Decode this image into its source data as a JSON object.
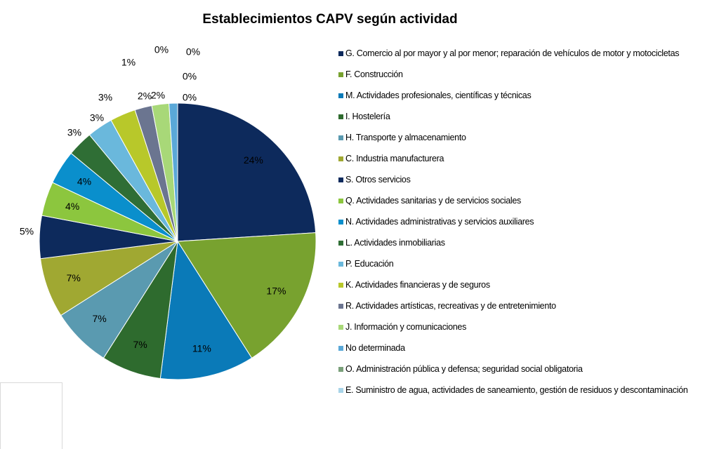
{
  "chart_data": {
    "type": "pie",
    "title": "Establecimientos CAPV según actividad",
    "categories": [
      "G. Comercio al por mayor y al por menor; reparación de vehículos de motor y motocicletas",
      "F. Construcción",
      "M. Actividades profesionales, científicas y técnicas",
      "I. Hostelería",
      "H. Transporte y almacenamiento",
      "C. Industria manufacturera",
      "S. Otros servicios",
      "Q. Actividades sanitarias y de servicios sociales",
      "N. Actividades administrativas y servicios auxiliares",
      "L. Actividades inmobiliarias",
      "P. Educación",
      "K. Actividades financieras y de seguros",
      "R. Actividades artísticas, recreativas y de entretenimiento",
      "J. Información y comunicaciones",
      "No determinada",
      "O. Administración pública y defensa; seguridad social obligatoria",
      "E. Suministro de agua, actividades de saneamiento, gestión de residuos y descontaminación",
      null,
      null
    ],
    "values": [
      24,
      17,
      11,
      7,
      7,
      7,
      5,
      4,
      4,
      3,
      3,
      3,
      2,
      2,
      1,
      0,
      0,
      0,
      0
    ],
    "value_labels": [
      "24%",
      "17%",
      "11%",
      "7%",
      "7%",
      "7%",
      "5%",
      "4%",
      "4%",
      "3%",
      "3%",
      "3%",
      "2%",
      "2%",
      "1%",
      "0%",
      "0%",
      "0%",
      "0%"
    ],
    "colors": [
      "#0d2a5c",
      "#78a22f",
      "#0a7ab8",
      "#2e6b2e",
      "#5a9ab0",
      "#a0a832",
      "#0d2a5c",
      "#8cc63e",
      "#0a8fcc",
      "#2f6e35",
      "#6ab8dc",
      "#b8c82a",
      "#6b7590",
      "#a8d878",
      "#5aa8d8",
      "#7aa07a",
      "#a8d4e8",
      "#c8c8c8",
      "#9ab0c0"
    ]
  }
}
